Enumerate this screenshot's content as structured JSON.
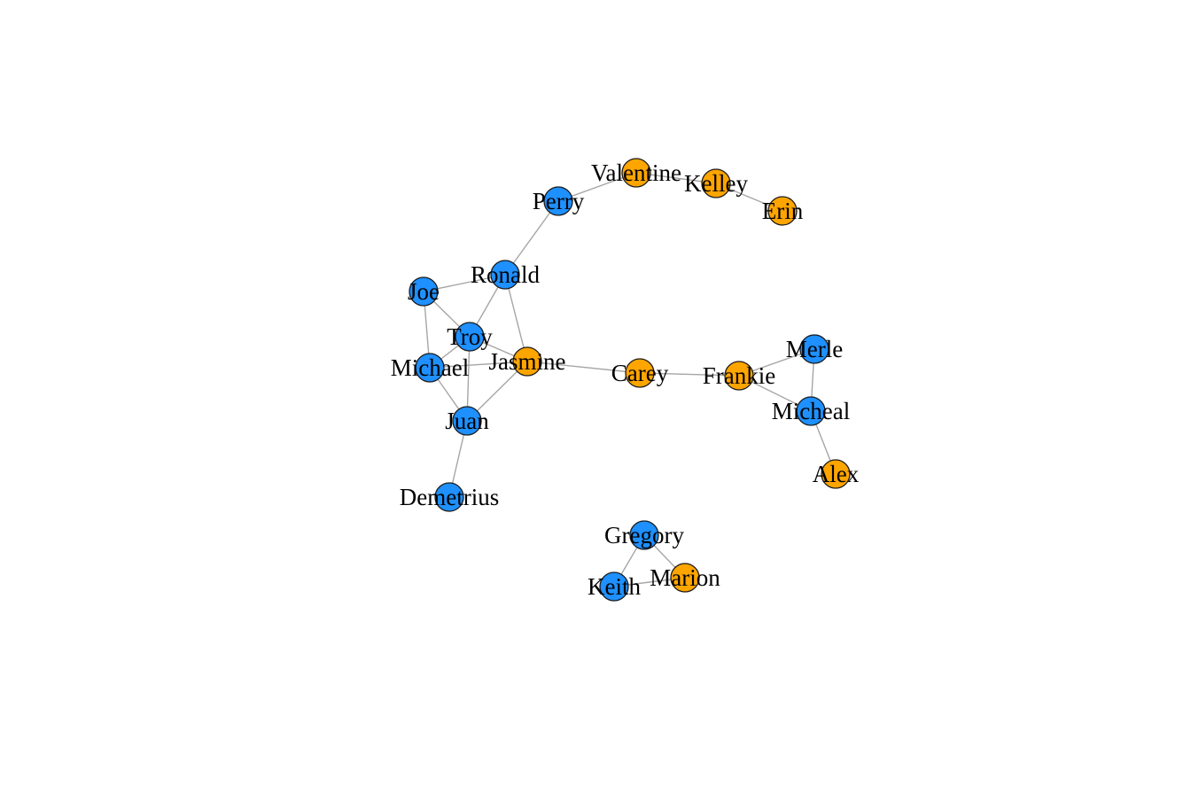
{
  "diagram": {
    "type": "network",
    "colors": {
      "blue": "#1e90ff",
      "orange": "#ffa500",
      "edge": "#a6a6a6",
      "border": "#1a1a1a"
    },
    "nodes": [
      {
        "id": "valentine",
        "label": "Valentine",
        "color": "orange"
      },
      {
        "id": "kelley",
        "label": "Kelley",
        "color": "orange"
      },
      {
        "id": "erin",
        "label": "Erin",
        "color": "orange"
      },
      {
        "id": "perry",
        "label": "Perry",
        "color": "blue"
      },
      {
        "id": "ronald",
        "label": "Ronald",
        "color": "blue"
      },
      {
        "id": "joe",
        "label": "Joe",
        "color": "blue"
      },
      {
        "id": "troy",
        "label": "Troy",
        "color": "blue"
      },
      {
        "id": "jasmine",
        "label": "Jasmine",
        "color": "orange"
      },
      {
        "id": "michael",
        "label": "Michael",
        "color": "blue"
      },
      {
        "id": "juan",
        "label": "Juan",
        "color": "blue"
      },
      {
        "id": "demetrius",
        "label": "Demetrius",
        "color": "blue"
      },
      {
        "id": "carey",
        "label": "Carey",
        "color": "orange"
      },
      {
        "id": "frankie",
        "label": "Frankie",
        "color": "orange"
      },
      {
        "id": "merle",
        "label": "Merle",
        "color": "blue"
      },
      {
        "id": "micheal",
        "label": "Micheal",
        "color": "blue"
      },
      {
        "id": "alex",
        "label": "Alex",
        "color": "orange"
      },
      {
        "id": "gregory",
        "label": "Gregory",
        "color": "blue"
      },
      {
        "id": "keith",
        "label": "Keith",
        "color": "blue"
      },
      {
        "id": "marion",
        "label": "Marion",
        "color": "orange"
      }
    ],
    "edges": [
      [
        "perry",
        "valentine"
      ],
      [
        "valentine",
        "kelley"
      ],
      [
        "kelley",
        "erin"
      ],
      [
        "perry",
        "ronald"
      ],
      [
        "ronald",
        "joe"
      ],
      [
        "ronald",
        "troy"
      ],
      [
        "ronald",
        "jasmine"
      ],
      [
        "joe",
        "troy"
      ],
      [
        "joe",
        "michael"
      ],
      [
        "troy",
        "michael"
      ],
      [
        "troy",
        "jasmine"
      ],
      [
        "troy",
        "juan"
      ],
      [
        "michael",
        "jasmine"
      ],
      [
        "michael",
        "juan"
      ],
      [
        "jasmine",
        "juan"
      ],
      [
        "juan",
        "demetrius"
      ],
      [
        "jasmine",
        "carey"
      ],
      [
        "carey",
        "frankie"
      ],
      [
        "frankie",
        "merle"
      ],
      [
        "frankie",
        "micheal"
      ],
      [
        "merle",
        "micheal"
      ],
      [
        "micheal",
        "alex"
      ],
      [
        "gregory",
        "keith"
      ],
      [
        "gregory",
        "marion"
      ],
      [
        "keith",
        "marion"
      ]
    ]
  }
}
